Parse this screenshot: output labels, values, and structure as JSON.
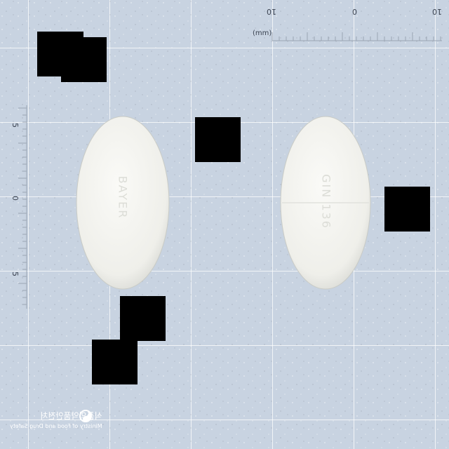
{
  "ruler_top": {
    "unit": "(mm)",
    "label_left": "10",
    "label_mid": "0",
    "label_right": "10"
  },
  "ruler_left": {
    "label_top": "5",
    "label_mid": "0",
    "label_bottom": "5"
  },
  "pills": [
    {
      "name": "white oval tablet, front",
      "imprint": "BAYER"
    },
    {
      "name": "white oval tablet, back",
      "imprint": "GIN 136"
    }
  ],
  "watermark": {
    "ko": "식품의약품안전처",
    "en": "Ministry of Food and Drug Safety"
  },
  "colors": {
    "background": "#c8d3e1",
    "pill": "#f1f1ec",
    "mask": "#000000"
  }
}
